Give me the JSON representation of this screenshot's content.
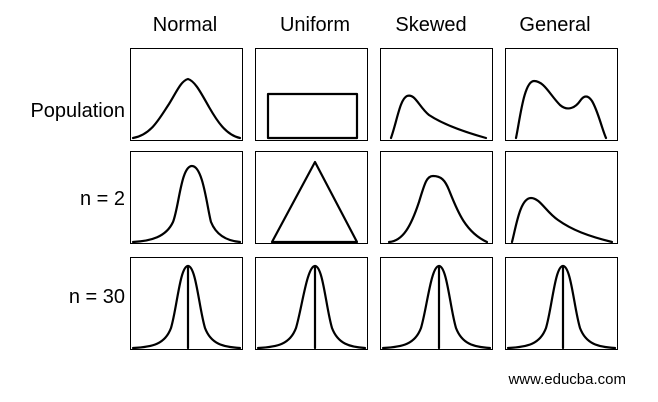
{
  "columns": [
    "Normal",
    "Uniform",
    "Skewed",
    "General"
  ],
  "rows": [
    "Population",
    "n = 2",
    "n = 30"
  ],
  "watermark": "www.educba.com"
}
